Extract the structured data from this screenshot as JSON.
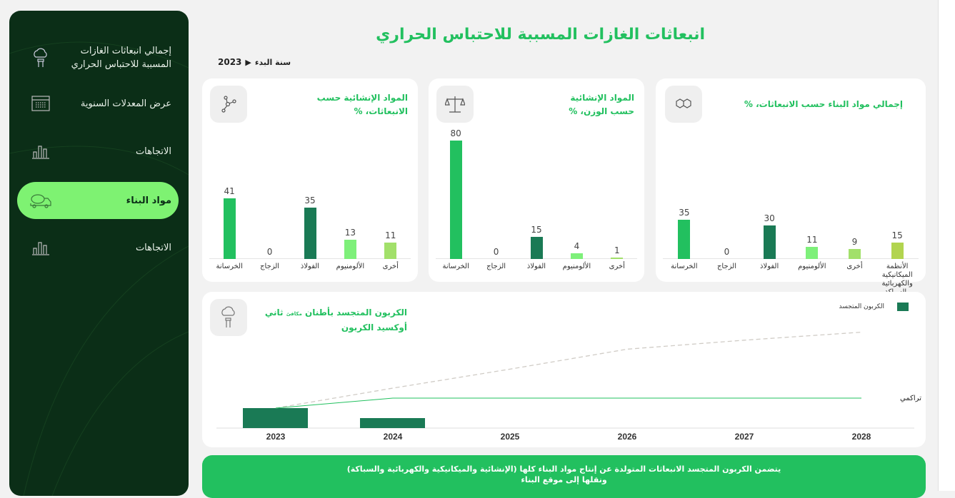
{
  "sidebar": {
    "items": [
      {
        "label": "إجمالي انبعاثات الغازات المسببة للاحتباس الحراري",
        "icon": "co2-cloud-icon"
      },
      {
        "label": "عرض المعدلات السنوية",
        "icon": "calendar-icon"
      },
      {
        "label": "الاتجاهات",
        "icon": "bar-chart-icon"
      },
      {
        "label": "مواد البناء",
        "icon": "cement-truck-icon",
        "active": true
      },
      {
        "label": "الاتجاهات",
        "icon": "bar-chart-icon"
      }
    ]
  },
  "header": {
    "title": "انبعاثات الغازات المسببة للاحتباس الحراري",
    "start_year_label": "سنة البدء",
    "start_year": "2023"
  },
  "colors": {
    "accent": "#22c05f",
    "sidebar": "#0b2e17",
    "active": "#7ef272"
  },
  "chart_data": [
    {
      "type": "bar",
      "title": "المواد الإنشائية حسب الانبعاثات، %",
      "icon": "molecule-icon",
      "categories": [
        "الخرسانة",
        "الزجاج",
        "الفولاذ",
        "الألومنيوم",
        "أخرى"
      ],
      "values": [
        41,
        0,
        35,
        13,
        11
      ],
      "colors": [
        "#22c05f",
        "#22c05f",
        "#1a7a55",
        "#7ef07a",
        "#a2e06a"
      ],
      "ylim": [
        0,
        87
      ]
    },
    {
      "type": "bar",
      "title": "المواد الإنشائية حسب الوزن، %",
      "icon": "scale-icon",
      "categories": [
        "الخرسانة",
        "الزجاج",
        "الفولاذ",
        "الألومنيوم",
        "أخرى"
      ],
      "values": [
        80,
        0,
        15,
        4,
        1
      ],
      "colors": [
        "#22c05f",
        "#22c05f",
        "#1a7a55",
        "#7ef07a",
        "#a2e06a"
      ],
      "ylim": [
        0,
        87
      ]
    },
    {
      "type": "bar",
      "title": "إجمالي مواد البناء حسب الانبعاثات، %",
      "icon": "hexagon-molecule-icon",
      "categories": [
        "الخرسانة",
        "الزجاج",
        "الفولاذ",
        "الألومنيوم",
        "أخرى",
        "الأنظمة الميكانيكية والكهربائية والسباكة"
      ],
      "values": [
        35,
        0,
        30,
        11,
        9,
        15
      ],
      "colors": [
        "#22c05f",
        "#22c05f",
        "#1a7a55",
        "#7ef07a",
        "#a2e06a",
        "#b2d44f"
      ],
      "ylim": [
        0,
        115
      ]
    },
    {
      "type": "bar",
      "title": "الكربون المتجسد بأطنان مكافئ ثاني أوكسيد الكربون",
      "title_main": "الكربون المتجسد بأطنان",
      "title_small": "مكافئ",
      "title_rest": "ثاني أوكسيد الكربون",
      "legend": "الكربون المتجسد",
      "cumulative_label": "تراكمي",
      "categories": [
        "2023",
        "2024",
        "2025",
        "2026",
        "2027",
        "2028"
      ],
      "values": [
        2,
        1,
        0,
        0,
        0,
        0
      ],
      "cumulative": [
        2,
        3,
        3,
        3,
        3,
        3
      ],
      "projection": [
        2,
        4,
        5.9,
        7.9,
        8.8,
        9.6
      ],
      "ylim": [
        0,
        11
      ],
      "bar_color": "#1a7a55",
      "line_color": "#22c05f",
      "projection_color": "#d0ccc6"
    }
  ],
  "banner": {
    "line1": "يتضمن الكربون المتجسد الانبعاثات المتولدة عن إنتاج مواد البناء كلها (الإنشائية والميكانيكية والكهربائية والسباكة)",
    "line2": "ونقلها إلى موقع البناء"
  }
}
